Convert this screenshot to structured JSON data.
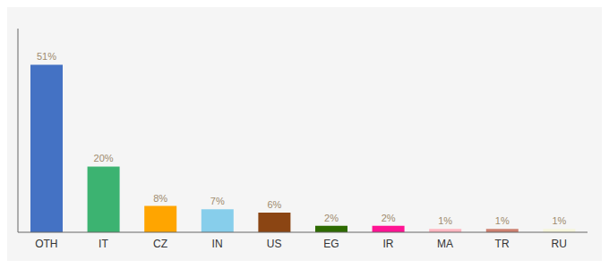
{
  "chart_data": {
    "type": "bar",
    "categories": [
      "OTH",
      "IT",
      "CZ",
      "IN",
      "US",
      "EG",
      "IR",
      "MA",
      "TR",
      "RU"
    ],
    "values": [
      51,
      20,
      8,
      7,
      6,
      2,
      2,
      1,
      1,
      1
    ],
    "value_labels": [
      "51%",
      "20%",
      "8%",
      "7%",
      "6%",
      "2%",
      "2%",
      "1%",
      "1%",
      "1%"
    ],
    "colors": [
      "#4472C4",
      "#3CB371",
      "#FFA500",
      "#87CEEB",
      "#8B4513",
      "#2E6B00",
      "#FF1493",
      "#FFB6C1",
      "#CD8070",
      "#F5F5DC"
    ],
    "ylim": [
      0,
      62
    ],
    "grid": false,
    "data_labels": true,
    "tick_labels": "x"
  }
}
